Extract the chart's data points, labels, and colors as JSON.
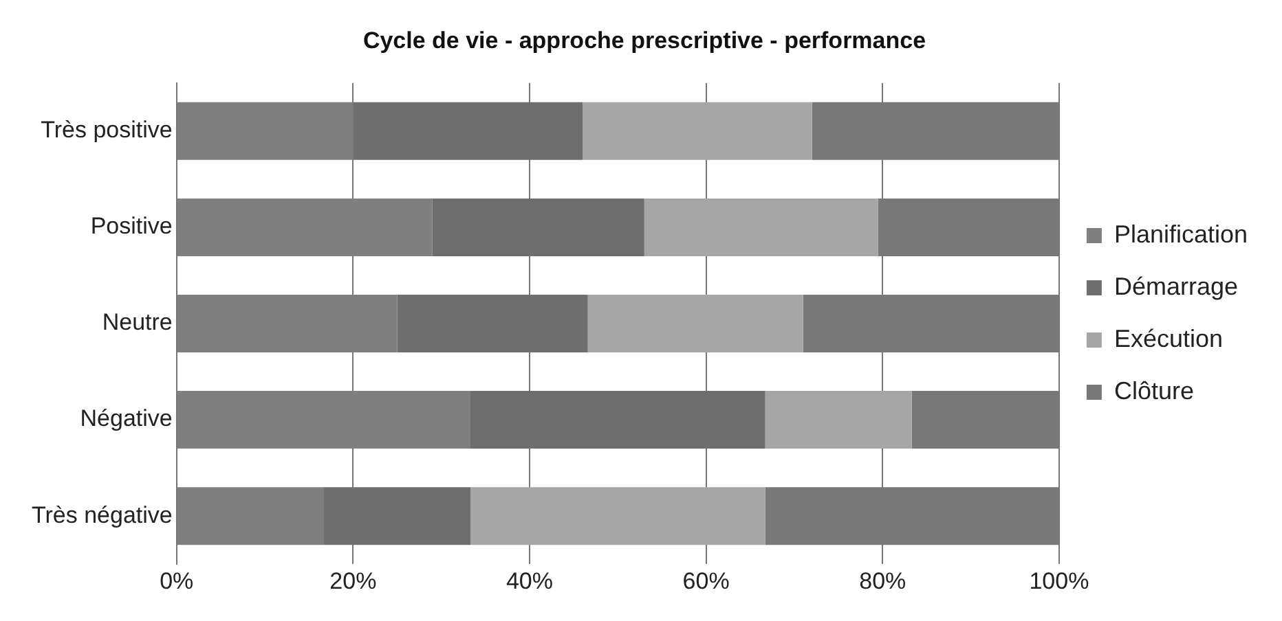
{
  "chart_data": {
    "type": "bar",
    "orientation": "horizontal",
    "stacked": true,
    "title": "Cycle de vie - approche prescriptive - performance",
    "categories": [
      "Très positive",
      "Positive",
      "Neutre",
      "Négative",
      "Très négative"
    ],
    "series": [
      {
        "name": "Planification",
        "color": "#7f7f7f",
        "values": [
          20,
          29,
          25,
          33.3,
          16.7
        ]
      },
      {
        "name": "Démarrage",
        "color": "#6e6e6e",
        "values": [
          26,
          24,
          21.6,
          33.4,
          16.6
        ]
      },
      {
        "name": "Exécution",
        "color": "#a6a6a6",
        "values": [
          26,
          26.5,
          24.4,
          16.6,
          33.4
        ]
      },
      {
        "name": "Clôture",
        "color": "#787878",
        "values": [
          28,
          20.5,
          29,
          16.7,
          33.3
        ]
      }
    ],
    "xlim": [
      0,
      100
    ],
    "xticks": [
      {
        "value": 0,
        "label": "0%"
      },
      {
        "value": 20,
        "label": "20%"
      },
      {
        "value": 40,
        "label": "40%"
      },
      {
        "value": 60,
        "label": "60%"
      },
      {
        "value": 80,
        "label": "80%"
      },
      {
        "value": 100,
        "label": "100%"
      }
    ],
    "grid": "x",
    "legend": "right"
  }
}
